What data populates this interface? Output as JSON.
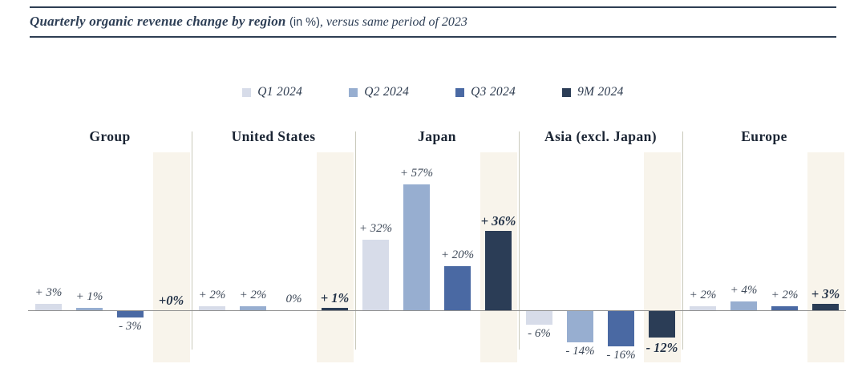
{
  "title": {
    "main": "Quarterly organic revenue change by region ",
    "unit": "(in %)",
    "suffix": ", versus same period of 2023"
  },
  "legend": [
    {
      "label": "Q1 2024",
      "color": "#d7dce9"
    },
    {
      "label": "Q2 2024",
      "color": "#97aed0"
    },
    {
      "label": "Q3 2024",
      "color": "#4a69a3"
    },
    {
      "label": "9M 2024",
      "color": "#2b3d56"
    }
  ],
  "chart_data": {
    "type": "bar",
    "title": "Quarterly organic revenue change by region (in %), versus same period of 2023",
    "categories": [
      "Group",
      "United States",
      "Japan",
      "Asia (excl. Japan)",
      "Europe"
    ],
    "series": [
      {
        "name": "Q1 2024",
        "color": "#d7dce9",
        "values": [
          3,
          2,
          32,
          -6,
          2
        ],
        "labels": [
          "+ 3%",
          "+ 2%",
          "+ 32%",
          "- 6%",
          "+ 2%"
        ]
      },
      {
        "name": "Q2 2024",
        "color": "#97aed0",
        "values": [
          1,
          2,
          57,
          -14,
          4
        ],
        "labels": [
          "+ 1%",
          "+ 2%",
          "+ 57%",
          "- 14%",
          "+ 4%"
        ]
      },
      {
        "name": "Q3 2024",
        "color": "#4a69a3",
        "values": [
          -3,
          0,
          20,
          -16,
          2
        ],
        "labels": [
          "- 3%",
          "0%",
          "+ 20%",
          "- 16%",
          "+ 2%"
        ]
      },
      {
        "name": "9M 2024",
        "color": "#2b3d56",
        "values": [
          0,
          1,
          36,
          -12,
          3
        ],
        "labels": [
          "+0%",
          "+ 1%",
          "+ 36%",
          "- 12%",
          "+ 3%"
        ],
        "emphasis": true
      }
    ],
    "ylim": [
      -20,
      72
    ],
    "unit": "%",
    "legend_position": "top",
    "grid": false,
    "baseline": 0,
    "highlight_band_color": "#f8f4eb",
    "highlighted_series": "9M 2024"
  }
}
